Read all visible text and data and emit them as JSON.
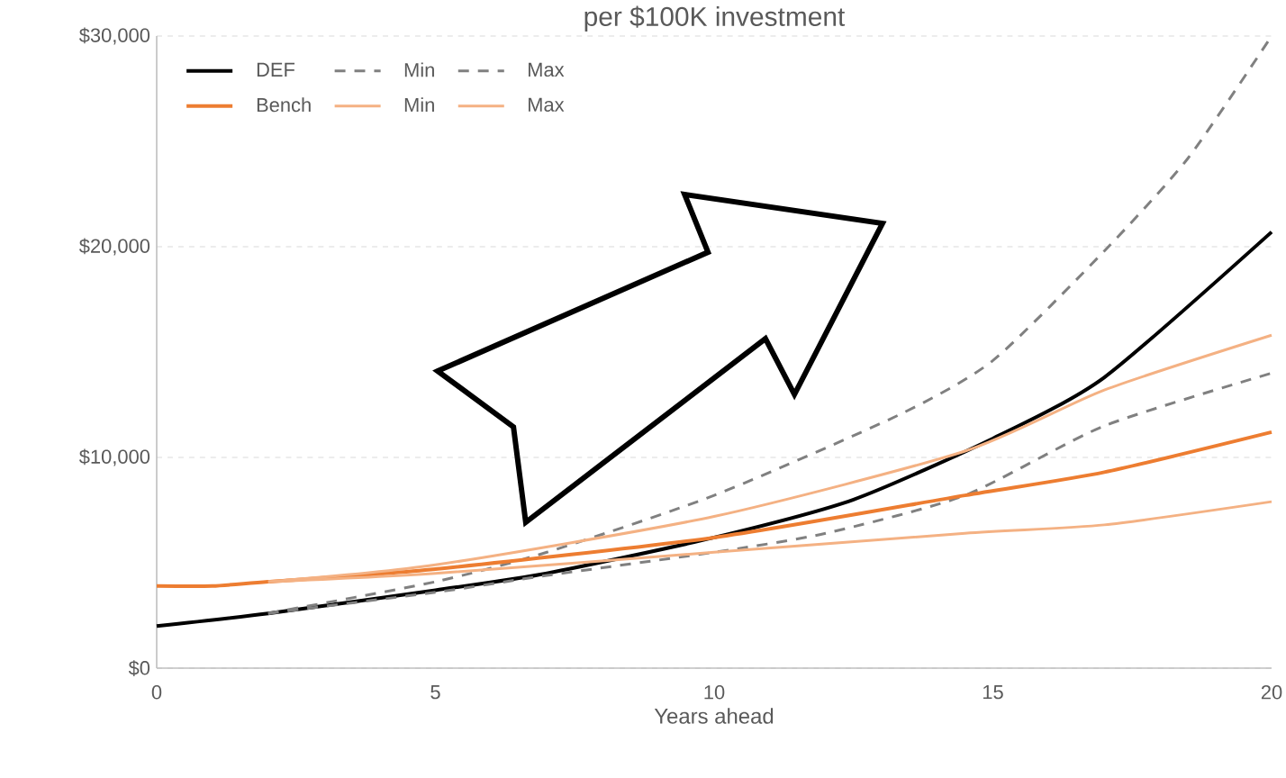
{
  "chart_data": {
    "type": "line",
    "title": "per $100K investment",
    "xlabel": "Years ahead",
    "xlim": [
      0,
      20
    ],
    "xticks": [
      0,
      5,
      10,
      15,
      20
    ],
    "ylim": [
      0,
      30000
    ],
    "yticks": [
      {
        "value": 0,
        "label": "$0"
      },
      {
        "value": 10000,
        "label": "$10,000"
      },
      {
        "value": 20000,
        "label": "$20,000"
      },
      {
        "value": 30000,
        "label": "$30,000"
      }
    ],
    "grid": "y",
    "legend": "top left",
    "marker": "none",
    "series": [
      {
        "name": "DEF",
        "color": "#000000",
        "line_style": "solid",
        "x": [
          0,
          2,
          5,
          7,
          10,
          12.5,
          15,
          17,
          20
        ],
        "values": [
          2000,
          2600,
          3700,
          4500,
          6200,
          8000,
          10900,
          13800,
          20700
        ]
      },
      {
        "name": "Min",
        "color": "#808080",
        "line_style": "dashed",
        "x": [
          2,
          5,
          7,
          10,
          12,
          14.5,
          17,
          20
        ],
        "values": [
          2600,
          3600,
          4400,
          5500,
          6400,
          8200,
          11500,
          14000
        ]
      },
      {
        "name": "Max",
        "color": "#808080",
        "line_style": "dashed",
        "x": [
          2,
          5,
          7,
          10,
          13.3,
          15,
          17,
          18.5,
          20
        ],
        "values": [
          2600,
          4100,
          5500,
          8200,
          12000,
          14600,
          19800,
          24200,
          30000
        ]
      },
      {
        "name": "Bench",
        "color": "#ed7d31",
        "line_style": "solid",
        "x": [
          0,
          1,
          2,
          5,
          10,
          14.5,
          17,
          20
        ],
        "values": [
          3900,
          3900,
          4100,
          4700,
          6200,
          8200,
          9300,
          11200
        ]
      },
      {
        "name": "Min",
        "color": "#f4b183",
        "line_style": "solid",
        "x": [
          2,
          5,
          10,
          14.5,
          17,
          20
        ],
        "values": [
          4100,
          4500,
          5500,
          6400,
          6800,
          7900
        ]
      },
      {
        "name": "Max",
        "color": "#f4b183",
        "line_style": "solid",
        "x": [
          2,
          5,
          10,
          14.5,
          17,
          20
        ],
        "values": [
          4100,
          4900,
          7200,
          10300,
          13200,
          15800
        ]
      }
    ]
  }
}
